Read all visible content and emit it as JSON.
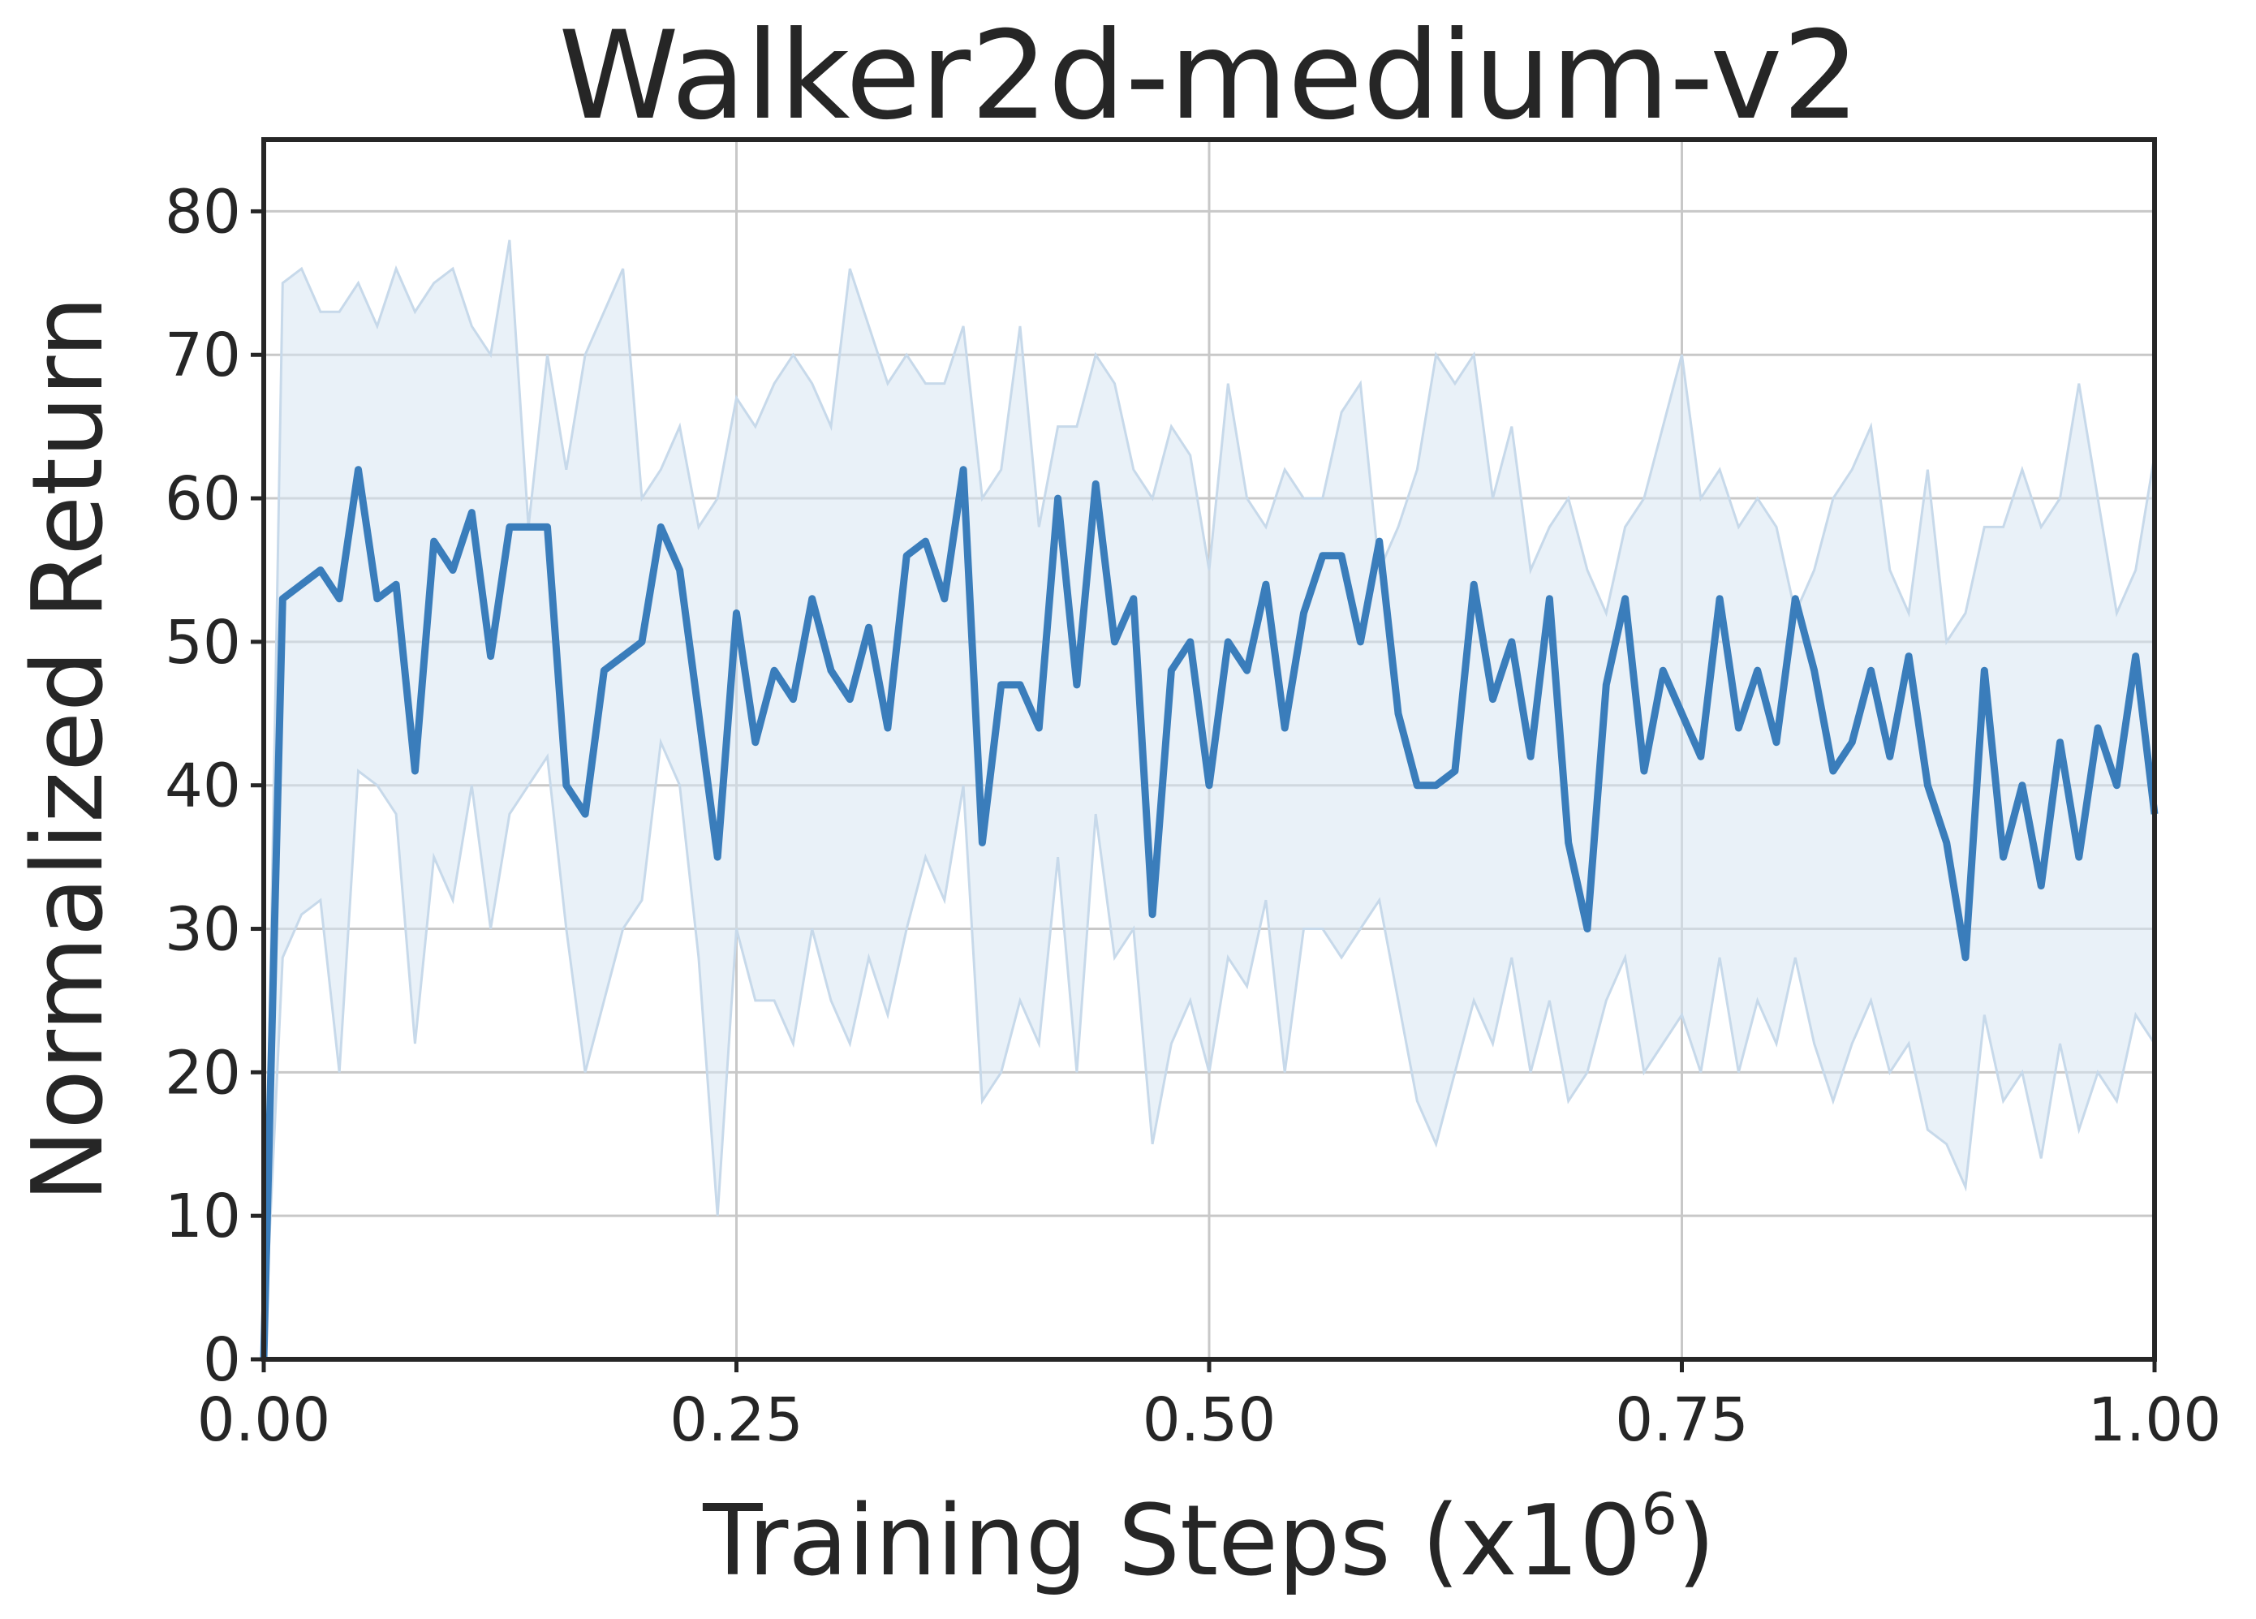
{
  "chart_data": {
    "type": "line",
    "title": "Walker2d-medium-v2",
    "xlabel": "Training Steps (x10",
    "xlabel_exponent": "6",
    "xlabel_close": ")",
    "ylabel": "Normalized Return",
    "xlim": [
      0,
      1
    ],
    "ylim": [
      0,
      85
    ],
    "grid": true,
    "x_ticks": [
      0,
      0.25,
      0.5,
      0.75,
      1.0
    ],
    "x_tick_labels": [
      "0.00",
      "0.25",
      "0.50",
      "0.75",
      "1.00"
    ],
    "y_ticks": [
      0,
      10,
      20,
      30,
      40,
      50,
      60,
      70,
      80
    ],
    "y_tick_labels": [
      "0",
      "10",
      "20",
      "30",
      "40",
      "50",
      "60",
      "70",
      "80"
    ],
    "colors": {
      "line": "#3a7dbb",
      "band": "#d7e5f2",
      "frame": "#262626"
    },
    "series": [
      {
        "x": [
          0,
          0.01,
          0.02,
          0.03,
          0.04,
          0.05,
          0.06,
          0.07,
          0.08,
          0.09,
          0.1,
          0.11,
          0.12,
          0.13,
          0.14,
          0.15,
          0.16,
          0.17,
          0.18,
          0.19,
          0.2,
          0.21,
          0.22,
          0.23,
          0.24,
          0.25,
          0.26,
          0.27,
          0.28,
          0.29,
          0.3,
          0.31,
          0.32,
          0.33,
          0.34,
          0.35,
          0.36,
          0.37,
          0.38,
          0.39,
          0.4,
          0.41,
          0.42,
          0.43,
          0.44,
          0.45,
          0.46,
          0.47,
          0.48,
          0.49,
          0.5,
          0.51,
          0.52,
          0.53,
          0.54,
          0.55,
          0.56,
          0.57,
          0.58,
          0.59,
          0.6,
          0.61,
          0.62,
          0.63,
          0.64,
          0.65,
          0.66,
          0.67,
          0.68,
          0.69,
          0.7,
          0.71,
          0.72,
          0.73,
          0.74,
          0.75,
          0.76,
          0.77,
          0.78,
          0.79,
          0.8,
          0.81,
          0.82,
          0.83,
          0.84,
          0.85,
          0.86,
          0.87,
          0.88,
          0.89,
          0.9,
          0.91,
          0.92,
          0.93,
          0.94,
          0.95,
          0.96,
          0.97,
          0.98,
          0.99,
          1.0
        ],
        "y": [
          0,
          53,
          54,
          55,
          53,
          62,
          53,
          54,
          41,
          57,
          55,
          59,
          49,
          58,
          58,
          58,
          40,
          38,
          48,
          49,
          50,
          58,
          55,
          45,
          35,
          52,
          43,
          48,
          46,
          53,
          48,
          46,
          51,
          44,
          56,
          57,
          53,
          62,
          36,
          47,
          47,
          44,
          60,
          47,
          61,
          50,
          53,
          31,
          48,
          50,
          40,
          50,
          48,
          54,
          44,
          52,
          56,
          56,
          50,
          57,
          45,
          40,
          40,
          41,
          54,
          46,
          50,
          42,
          53,
          36,
          30,
          47,
          53,
          41,
          48,
          45,
          42,
          53,
          44,
          48,
          43,
          53,
          48,
          41,
          43,
          48,
          42,
          49,
          40,
          36,
          28,
          48,
          35,
          40,
          33,
          43,
          35,
          44,
          40,
          49,
          38
        ],
        "y_upper": [
          0,
          75,
          76,
          73,
          73,
          75,
          72,
          76,
          73,
          75,
          76,
          72,
          70,
          78,
          58,
          70,
          62,
          70,
          73,
          76,
          60,
          62,
          65,
          58,
          60,
          67,
          65,
          68,
          70,
          68,
          65,
          76,
          72,
          68,
          70,
          68,
          68,
          72,
          60,
          62,
          72,
          58,
          65,
          65,
          70,
          68,
          62,
          60,
          65,
          63,
          55,
          68,
          60,
          58,
          62,
          60,
          60,
          66,
          68,
          55,
          58,
          62,
          70,
          68,
          70,
          60,
          65,
          55,
          58,
          60,
          55,
          52,
          58,
          60,
          65,
          70,
          60,
          62,
          58,
          60,
          58,
          52,
          55,
          60,
          62,
          65,
          55,
          52,
          62,
          50,
          52,
          58,
          58,
          62,
          58,
          60,
          68,
          60,
          52,
          55,
          63
        ],
        "y_lower": [
          0,
          28,
          31,
          32,
          20,
          41,
          40,
          38,
          22,
          35,
          32,
          40,
          30,
          38,
          40,
          42,
          30,
          20,
          25,
          30,
          32,
          43,
          40,
          28,
          10,
          30,
          25,
          25,
          22,
          30,
          25,
          22,
          28,
          24,
          30,
          35,
          32,
          40,
          18,
          20,
          25,
          22,
          35,
          20,
          38,
          28,
          30,
          15,
          22,
          25,
          20,
          28,
          26,
          32,
          20,
          30,
          30,
          28,
          30,
          32,
          25,
          18,
          15,
          20,
          25,
          22,
          28,
          20,
          25,
          18,
          20,
          25,
          28,
          20,
          22,
          24,
          20,
          28,
          20,
          25,
          22,
          28,
          22,
          18,
          22,
          25,
          20,
          22,
          16,
          15,
          12,
          24,
          18,
          20,
          14,
          22,
          16,
          20,
          18,
          24,
          22
        ]
      }
    ]
  }
}
